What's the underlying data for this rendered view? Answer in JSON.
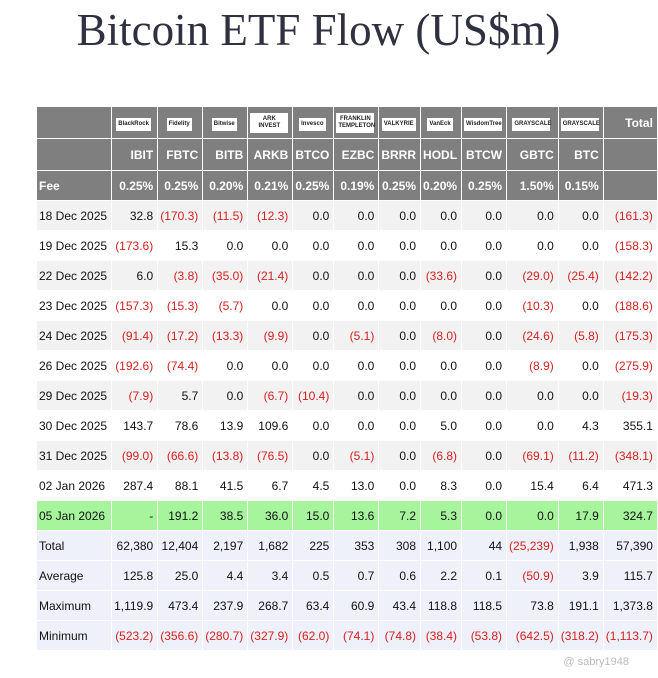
{
  "title": "Bitcoin ETF Flow (US$m)",
  "table": {
    "logos": [
      "BlackRock",
      "Fidelity",
      "Bitwise",
      "ARK INVEST",
      "Invesco",
      "FRANKLIN TEMPLETON",
      "VALKYRIE",
      "VanEck",
      "WisdomTree",
      "GRAYSCALE",
      "GRAYSCALE",
      "Total"
    ],
    "tickers": [
      "IBIT",
      "FBTC",
      "BITB",
      "ARKB",
      "BTCO",
      "EZBC",
      "BRRR",
      "HODL",
      "BTCW",
      "GBTC",
      "BTC"
    ],
    "fee": [
      "Fee",
      "0.25%",
      "0.25%",
      "0.20%",
      "0.21%",
      "0.25%",
      "0.19%",
      "0.25%",
      "0.20%",
      "0.25%",
      "1.50%",
      "0.15%"
    ],
    "rows": [
      [
        "18 Dec 2025",
        "32.8",
        "(170.3)",
        "(11.5)",
        "(12.3)",
        "0.0",
        "0.0",
        "0.0",
        "0.0",
        "0.0",
        "0.0",
        "0.0",
        "(161.3)"
      ],
      [
        "19 Dec 2025",
        "(173.6)",
        "15.3",
        "0.0",
        "0.0",
        "0.0",
        "0.0",
        "0.0",
        "0.0",
        "0.0",
        "0.0",
        "0.0",
        "(158.3)"
      ],
      [
        "22 Dec 2025",
        "6.0",
        "(3.8)",
        "(35.0)",
        "(21.4)",
        "0.0",
        "0.0",
        "0.0",
        "(33.6)",
        "0.0",
        "(29.0)",
        "(25.4)",
        "(142.2)"
      ],
      [
        "23 Dec 2025",
        "(157.3)",
        "(15.3)",
        "(5.7)",
        "0.0",
        "0.0",
        "0.0",
        "0.0",
        "0.0",
        "0.0",
        "(10.3)",
        "0.0",
        "(188.6)"
      ],
      [
        "24 Dec 2025",
        "(91.4)",
        "(17.2)",
        "(13.3)",
        "(9.9)",
        "0.0",
        "(5.1)",
        "0.0",
        "(8.0)",
        "0.0",
        "(24.6)",
        "(5.8)",
        "(175.3)"
      ],
      [
        "26 Dec 2025",
        "(192.6)",
        "(74.4)",
        "0.0",
        "0.0",
        "0.0",
        "0.0",
        "0.0",
        "0.0",
        "0.0",
        "(8.9)",
        "0.0",
        "(275.9)"
      ],
      [
        "29 Dec 2025",
        "(7.9)",
        "5.7",
        "0.0",
        "(6.7)",
        "(10.4)",
        "0.0",
        "0.0",
        "0.0",
        "0.0",
        "0.0",
        "0.0",
        "(19.3)"
      ],
      [
        "30 Dec 2025",
        "143.7",
        "78.6",
        "13.9",
        "109.6",
        "0.0",
        "0.0",
        "0.0",
        "5.0",
        "0.0",
        "0.0",
        "4.3",
        "355.1"
      ],
      [
        "31 Dec 2025",
        "(99.0)",
        "(66.6)",
        "(13.8)",
        "(76.5)",
        "0.0",
        "(5.1)",
        "0.0",
        "(6.8)",
        "0.0",
        "(69.1)",
        "(11.2)",
        "(348.1)"
      ],
      [
        "02 Jan 2026",
        "287.4",
        "88.1",
        "41.5",
        "6.7",
        "4.5",
        "13.0",
        "0.0",
        "8.3",
        "0.0",
        "15.4",
        "6.4",
        "471.3"
      ],
      [
        "05 Jan 2026",
        "-",
        "191.2",
        "38.5",
        "36.0",
        "15.0",
        "13.6",
        "7.2",
        "5.3",
        "0.0",
        "0.0",
        "17.9",
        "324.7"
      ]
    ],
    "summary": [
      [
        "Total",
        "62,380",
        "12,404",
        "2,197",
        "1,682",
        "225",
        "353",
        "308",
        "1,100",
        "44",
        "(25,239)",
        "1,938",
        "57,390"
      ],
      [
        "Average",
        "125.8",
        "25.0",
        "4.4",
        "3.4",
        "0.5",
        "0.7",
        "0.6",
        "2.2",
        "0.1",
        "(50.9)",
        "3.9",
        "115.7"
      ],
      [
        "Maximum",
        "1,119.9",
        "473.4",
        "237.9",
        "268.7",
        "63.4",
        "60.9",
        "43.4",
        "118.8",
        "118.5",
        "73.8",
        "191.1",
        "1,373.8"
      ],
      [
        "Minimum",
        "(523.2)",
        "(356.6)",
        "(280.7)",
        "(327.9)",
        "(62.0)",
        "(74.1)",
        "(74.8)",
        "(38.4)",
        "(53.8)",
        "(642.5)",
        "(318.2)",
        "(1,113.7)"
      ]
    ],
    "highlight": {
      "row": 10,
      "color": "#a6f59c"
    }
  },
  "watermark": "@ sabry1948"
}
